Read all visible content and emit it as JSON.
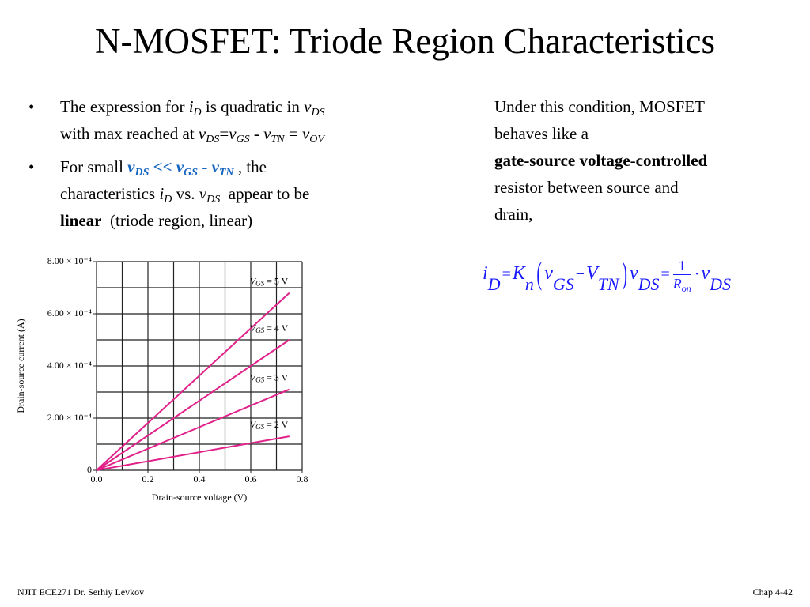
{
  "title": "N-MOSFET: Triode Region Characteristics",
  "bullets": [
    {
      "parts": [
        "The expression  for ",
        "i",
        "D",
        " is quadratic in ",
        "v",
        "DS",
        "with max reached at ",
        "v",
        "DS",
        "=",
        "v",
        "GS",
        "- ",
        "v",
        "TN",
        "=",
        "v",
        "OV"
      ]
    },
    {
      "parts": [
        "For small ",
        "v",
        "DS",
        "<<",
        "v",
        "GS",
        "-",
        "v",
        "TN",
        ", the",
        "characteristics ",
        "i",
        "D",
        "vs.",
        "v",
        "DS",
        "appear to be",
        "linear",
        "(triode region, linear)"
      ]
    }
  ],
  "note": {
    "lines": [
      "Under this condition, MOSFET",
      "behaves like a",
      "gate-source voltage",
      "-",
      "controlled",
      "resistor between source and",
      "drain,"
    ]
  },
  "equation": {
    "parts": [
      "i",
      "D",
      "=",
      "K",
      "n",
      "(",
      "v",
      "GS",
      "−",
      "V",
      "TN",
      ")",
      "v",
      "DS",
      "=",
      "1",
      "R",
      "on",
      "·",
      "v",
      "DS"
    ]
  },
  "chart_data": {
    "type": "line",
    "x_label": "Drain-source voltage (V)",
    "y_label": "Drain-source current (A)",
    "xlim": [
      0,
      0.8
    ],
    "ylim": [
      0,
      0.0008
    ],
    "xticks": [
      {
        "value": 0,
        "label": "0.0"
      },
      0.2,
      0.4,
      0.6,
      0.8
    ],
    "yticks": [
      0,
      {
        "value": 0.0002,
        "label": "2.00 × 10⁻⁴"
      },
      {
        "value": 0.0004,
        "label": "4.00 × 10⁻⁴"
      },
      {
        "value": 0.0006,
        "label": "6.00 × 10⁻⁴"
      },
      {
        "value": 0.0008,
        "label": "8.00 × 10⁻⁴"
      }
    ],
    "xgrid": [
      0,
      0.1,
      0.2,
      0.3,
      0.4,
      0.5,
      0.6,
      0.7,
      0.8
    ],
    "ygrid": [
      0,
      0.0001,
      0.0002,
      0.0003,
      0.0004,
      0.0005,
      0.0006,
      0.0007,
      0.0008
    ],
    "grid": true,
    "x": [
      0,
      0.75
    ],
    "series": [
      {
        "name": "VGS = 5 V",
        "color": "#e0218a",
        "values": [
          0,
          0.00068
        ]
      },
      {
        "name": "VGS = 4 V",
        "color": "#e0218a",
        "values": [
          0,
          0.0005
        ]
      },
      {
        "name": "VGS = 3 V",
        "color": "#e0218a",
        "values": [
          0,
          0.00031
        ]
      },
      {
        "name": "VGS = 2 V",
        "color": "#e0218a",
        "values": [
          0,
          0.00013
        ]
      }
    ]
  },
  "footer": {
    "left": "NJIT  ECE271 Dr. Serhiy Levkov",
    "right": "Chap 4-42"
  }
}
